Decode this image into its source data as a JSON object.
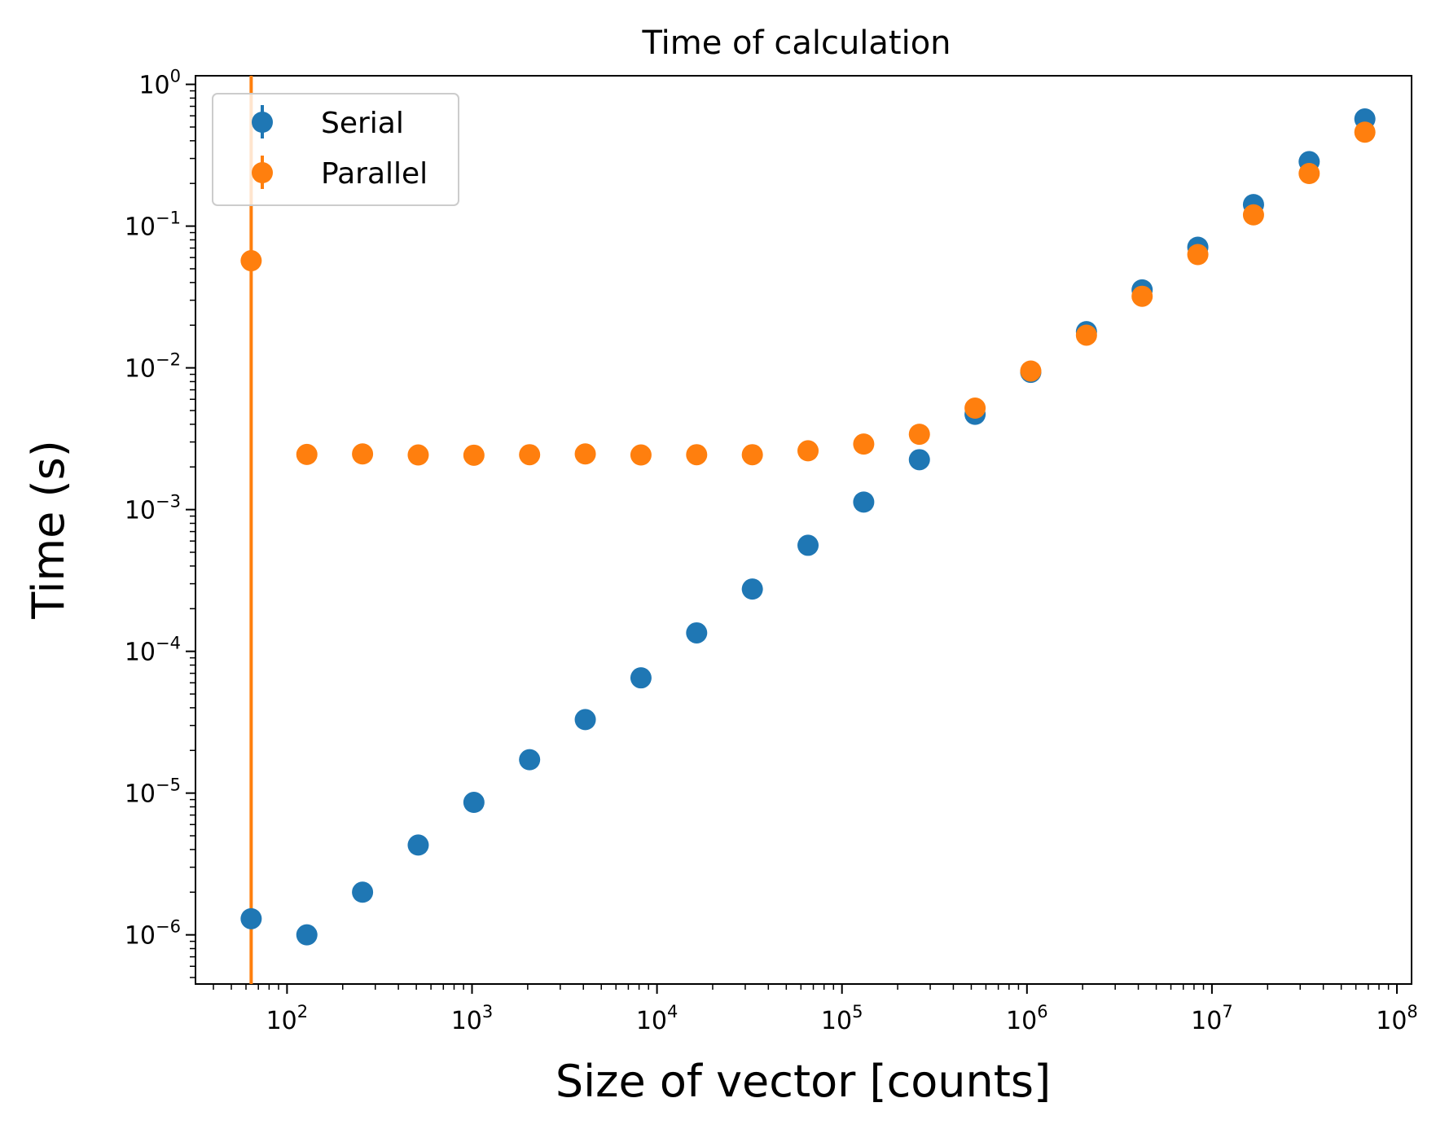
{
  "chart_data": {
    "type": "scatter",
    "title": "Time of calculation",
    "xlabel": "Size of vector [counts]",
    "ylabel": "Time (s)",
    "xscale": "log",
    "yscale": "log",
    "xlim": [
      32,
      120000000
    ],
    "ylim": [
      4.5e-07,
      1.15
    ],
    "grid": false,
    "legend_position": "top-left",
    "x_ticks": [
      {
        "value": 100,
        "base": "10",
        "exp": "2"
      },
      {
        "value": 1000,
        "base": "10",
        "exp": "3"
      },
      {
        "value": 10000,
        "base": "10",
        "exp": "4"
      },
      {
        "value": 100000,
        "base": "10",
        "exp": "5"
      },
      {
        "value": 1000000,
        "base": "10",
        "exp": "6"
      },
      {
        "value": 10000000,
        "base": "10",
        "exp": "7"
      },
      {
        "value": 100000000,
        "base": "10",
        "exp": "8"
      }
    ],
    "y_ticks": [
      {
        "value": 1e-06,
        "base": "10",
        "exp": "−6"
      },
      {
        "value": 1e-05,
        "base": "10",
        "exp": "−5"
      },
      {
        "value": 0.0001,
        "base": "10",
        "exp": "−4"
      },
      {
        "value": 0.001,
        "base": "10",
        "exp": "−3"
      },
      {
        "value": 0.01,
        "base": "10",
        "exp": "−2"
      },
      {
        "value": 0.1,
        "base": "10",
        "exp": "−1"
      },
      {
        "value": 1,
        "base": "10",
        "exp": "0"
      }
    ],
    "x": [
      64,
      128,
      256,
      512,
      1024,
      2048,
      4096,
      8192,
      16384,
      32768,
      65536,
      131072,
      262144,
      524288,
      1048576,
      2097152,
      4194304,
      8388608,
      16777216,
      33554432,
      67108864
    ],
    "series": [
      {
        "name": "Serial",
        "color": "#1f77b4",
        "values": [
          1.3e-06,
          1e-06,
          2e-06,
          4.3e-06,
          8.6e-06,
          1.72e-05,
          3.3e-05,
          6.5e-05,
          0.000135,
          0.000275,
          0.00056,
          0.00113,
          0.00225,
          0.0047,
          0.0093,
          0.018,
          0.0355,
          0.071,
          0.142,
          0.285,
          0.57
        ],
        "error_bars": [
          null,
          null,
          null,
          null,
          null,
          null,
          null,
          null,
          null,
          null,
          null,
          null,
          null,
          null,
          null,
          null,
          null,
          null,
          null,
          null,
          null
        ]
      },
      {
        "name": "Parallel",
        "color": "#ff7f0e",
        "values": [
          0.057,
          0.00245,
          0.00247,
          0.00243,
          0.00242,
          0.00244,
          0.00247,
          0.00243,
          0.00244,
          0.00244,
          0.0026,
          0.0029,
          0.0034,
          0.0052,
          0.0095,
          0.017,
          0.032,
          0.063,
          0.12,
          0.235,
          0.46
        ],
        "error_bars": [
          [
            4.5e-07,
            1.15
          ],
          null,
          null,
          null,
          null,
          null,
          null,
          null,
          null,
          null,
          null,
          null,
          null,
          null,
          null,
          null,
          null,
          null,
          null,
          null,
          null
        ]
      }
    ]
  }
}
